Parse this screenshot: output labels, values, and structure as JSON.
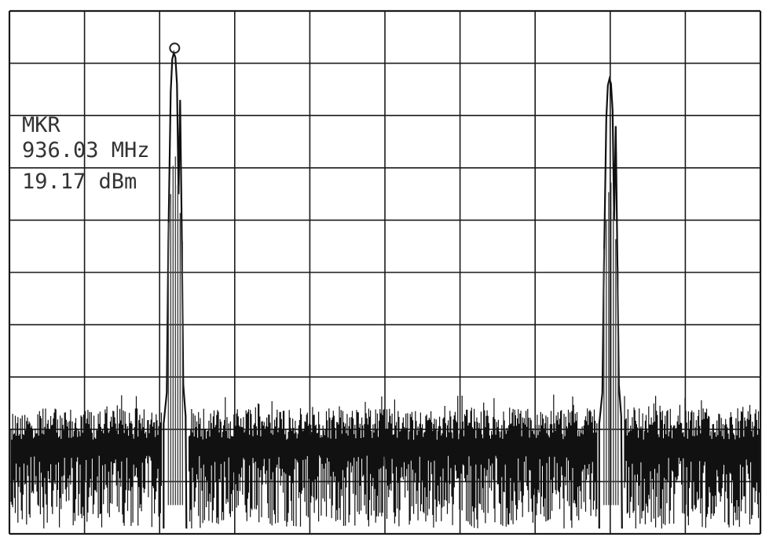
{
  "marker": {
    "label": "MKR",
    "frequency": "936.03 MHz",
    "level": "19.17 dBm"
  },
  "chart_data": {
    "type": "line",
    "title": "",
    "xlabel": "",
    "ylabel": "",
    "grid": true,
    "grid_divisions": {
      "x": 10,
      "y": 10
    },
    "series": [
      {
        "values_note": "",
        "peaks": [
          {
            "x_div": 2.2,
            "top_div": 0.8,
            "marker": true
          },
          {
            "x_div": 8.0,
            "top_div": 1.3,
            "marker": false
          }
        ],
        "noise_floor_div": {
          "low": 7.6,
          "high": 9.9
        }
      }
    ],
    "colors": {
      "trace": "#111111",
      "grid": "#1a1a1a",
      "background": "#ffffff"
    }
  }
}
